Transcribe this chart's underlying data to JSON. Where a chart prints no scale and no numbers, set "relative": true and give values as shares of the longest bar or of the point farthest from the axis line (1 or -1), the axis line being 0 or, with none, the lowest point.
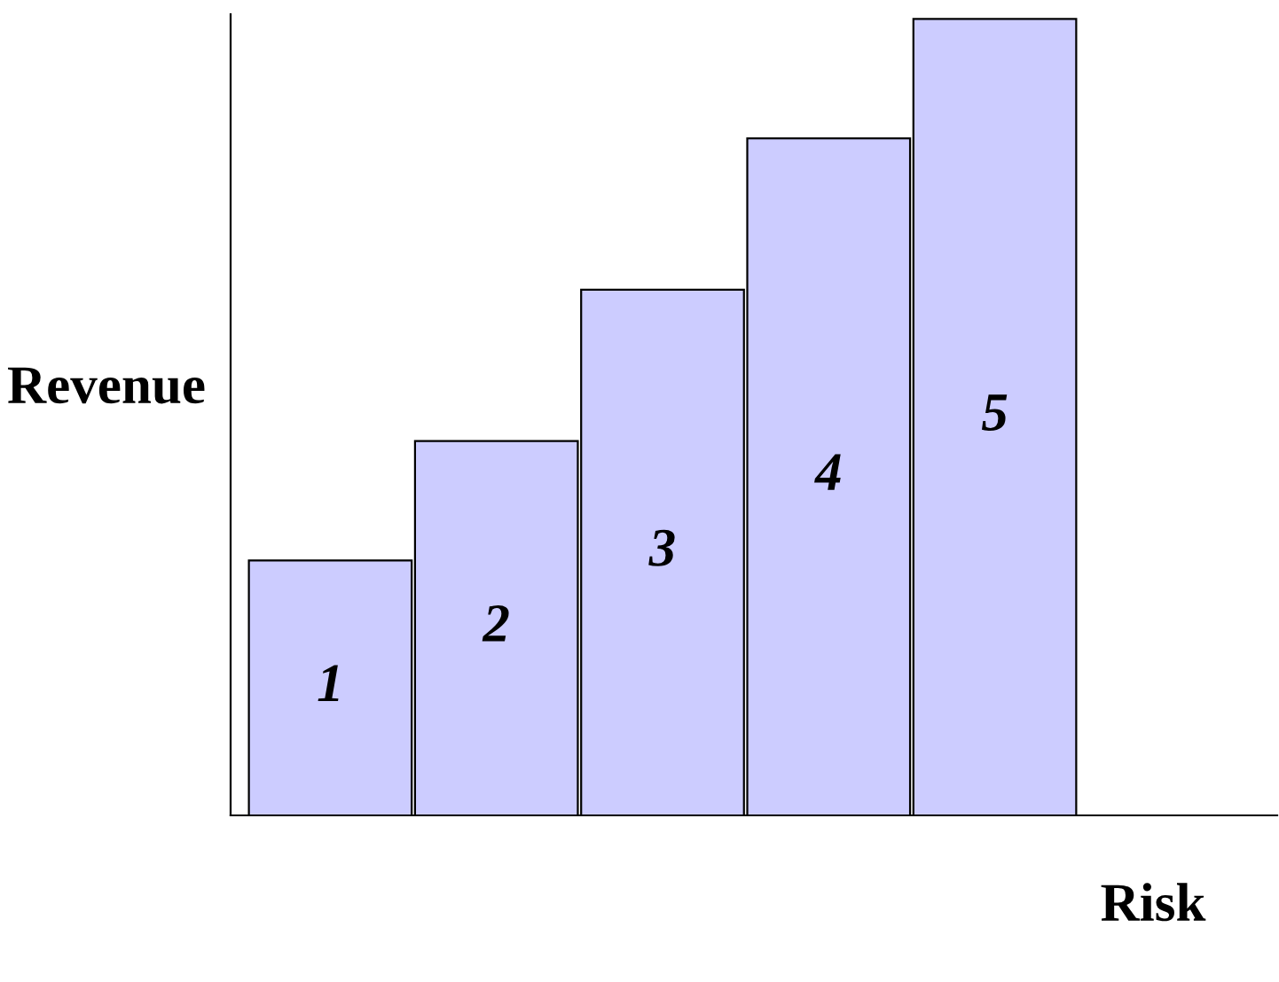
{
  "chart_data": {
    "type": "bar",
    "relative": true,
    "xlabel": "Risk",
    "ylabel": "Revenue",
    "categories": [
      "1",
      "2",
      "3",
      "4",
      "5"
    ],
    "values": [
      0.32,
      0.47,
      0.66,
      0.85,
      1.0
    ],
    "color": "#ccccff"
  }
}
